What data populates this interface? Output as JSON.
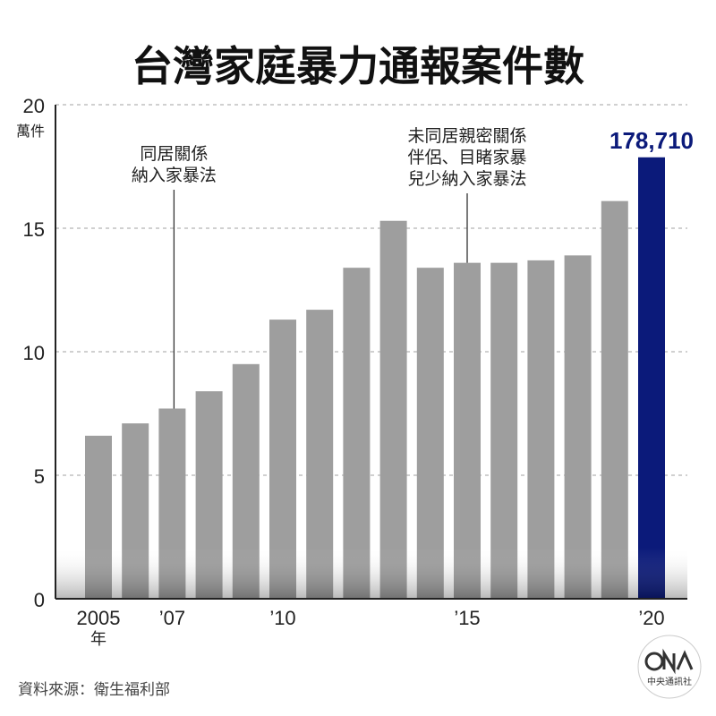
{
  "chart_data": {
    "type": "bar",
    "title": "台灣家庭暴力通報案件數",
    "y_unit": "萬件",
    "ylim": [
      0,
      20
    ],
    "yticks": [
      0,
      5,
      10,
      15,
      20
    ],
    "grid": true,
    "x": [
      2005,
      2006,
      2007,
      2008,
      2009,
      2010,
      2011,
      2012,
      2013,
      2014,
      2015,
      2016,
      2017,
      2018,
      2019,
      2020
    ],
    "values": [
      6.6,
      7.1,
      7.7,
      8.4,
      9.5,
      11.3,
      11.7,
      13.4,
      15.3,
      13.4,
      13.6,
      13.6,
      13.7,
      13.9,
      16.1,
      17.871
    ],
    "xtick_labels": [
      {
        "index": 0,
        "label": "2005"
      },
      {
        "index": 2,
        "label": "’07"
      },
      {
        "index": 5,
        "label": "’10"
      },
      {
        "index": 10,
        "label": "’15"
      },
      {
        "index": 15,
        "label": "’20"
      }
    ],
    "x_unit": "年",
    "highlight_index": 15,
    "highlight_label": "178,710",
    "colors": {
      "bar": "#9e9e9e",
      "highlight": "#0b1a7a",
      "grid": "#b5b5b5",
      "axis": "#222222"
    },
    "annotations": [
      {
        "index": 2,
        "lines": [
          "同居關係",
          "納入家暴法"
        ]
      },
      {
        "index": 10,
        "lines": [
          "未同居親密關係",
          "伴侶、目睹家暴",
          "兒少納入家暴法"
        ]
      }
    ]
  },
  "source": "資料來源：衛生福利部",
  "logo": {
    "text": "中央通訊社",
    "icon": "cna-logo"
  }
}
